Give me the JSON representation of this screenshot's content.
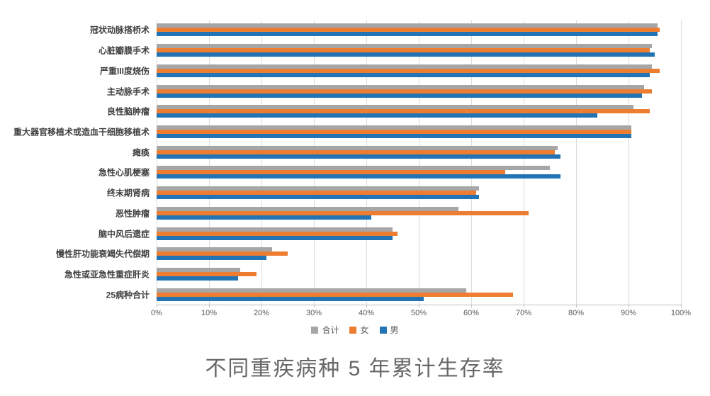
{
  "chart_data": {
    "type": "bar",
    "orientation": "horizontal",
    "title": "不同重疾病种 5 年累计生存率",
    "categories": [
      "冠状动脉搭桥术",
      "心脏瓣膜手术",
      "严重III度烧伤",
      "主动脉手术",
      "良性脑肿瘤",
      "重大器官移植术或造血干细胞移植术",
      "瘫痪",
      "急性心肌梗塞",
      "终末期肾病",
      "恶性肿瘤",
      "脑中风后遗症",
      "慢性肝功能衰竭失代偿期",
      "急性或亚急性重症肝炎",
      "25病种合计"
    ],
    "series": [
      {
        "name": "合计",
        "color": "#A6A6A6",
        "values": [
          95.5,
          94.5,
          94.5,
          93,
          91,
          90.5,
          76.5,
          75,
          61.5,
          57.5,
          45,
          22,
          16,
          59
        ]
      },
      {
        "name": "女",
        "color": "#ED7D31",
        "values": [
          96,
          94,
          96,
          94.5,
          94,
          90.5,
          76,
          66.5,
          61,
          71,
          46,
          25,
          19,
          68
        ]
      },
      {
        "name": "男",
        "color": "#2374B5",
        "values": [
          95.5,
          95,
          94,
          92.5,
          84,
          90.5,
          77,
          77,
          61.5,
          41,
          45,
          21,
          15.5,
          51
        ]
      }
    ],
    "x_axis": {
      "min": 0,
      "max": 100,
      "unit": "%",
      "ticks": [
        "0%",
        "10%",
        "20%",
        "30%",
        "40%",
        "50%",
        "60%",
        "70%",
        "80%",
        "90%",
        "100%"
      ]
    },
    "legend": [
      "合计",
      "女",
      "男"
    ],
    "legend_position": "bottom",
    "grid": true,
    "colors": {
      "gridline": "#dcdcdc",
      "axis": "#bfbfbf",
      "tick_label": "#595959",
      "category_label": "#3f3f3f",
      "title": "#686868",
      "background": "#ffffff"
    }
  }
}
